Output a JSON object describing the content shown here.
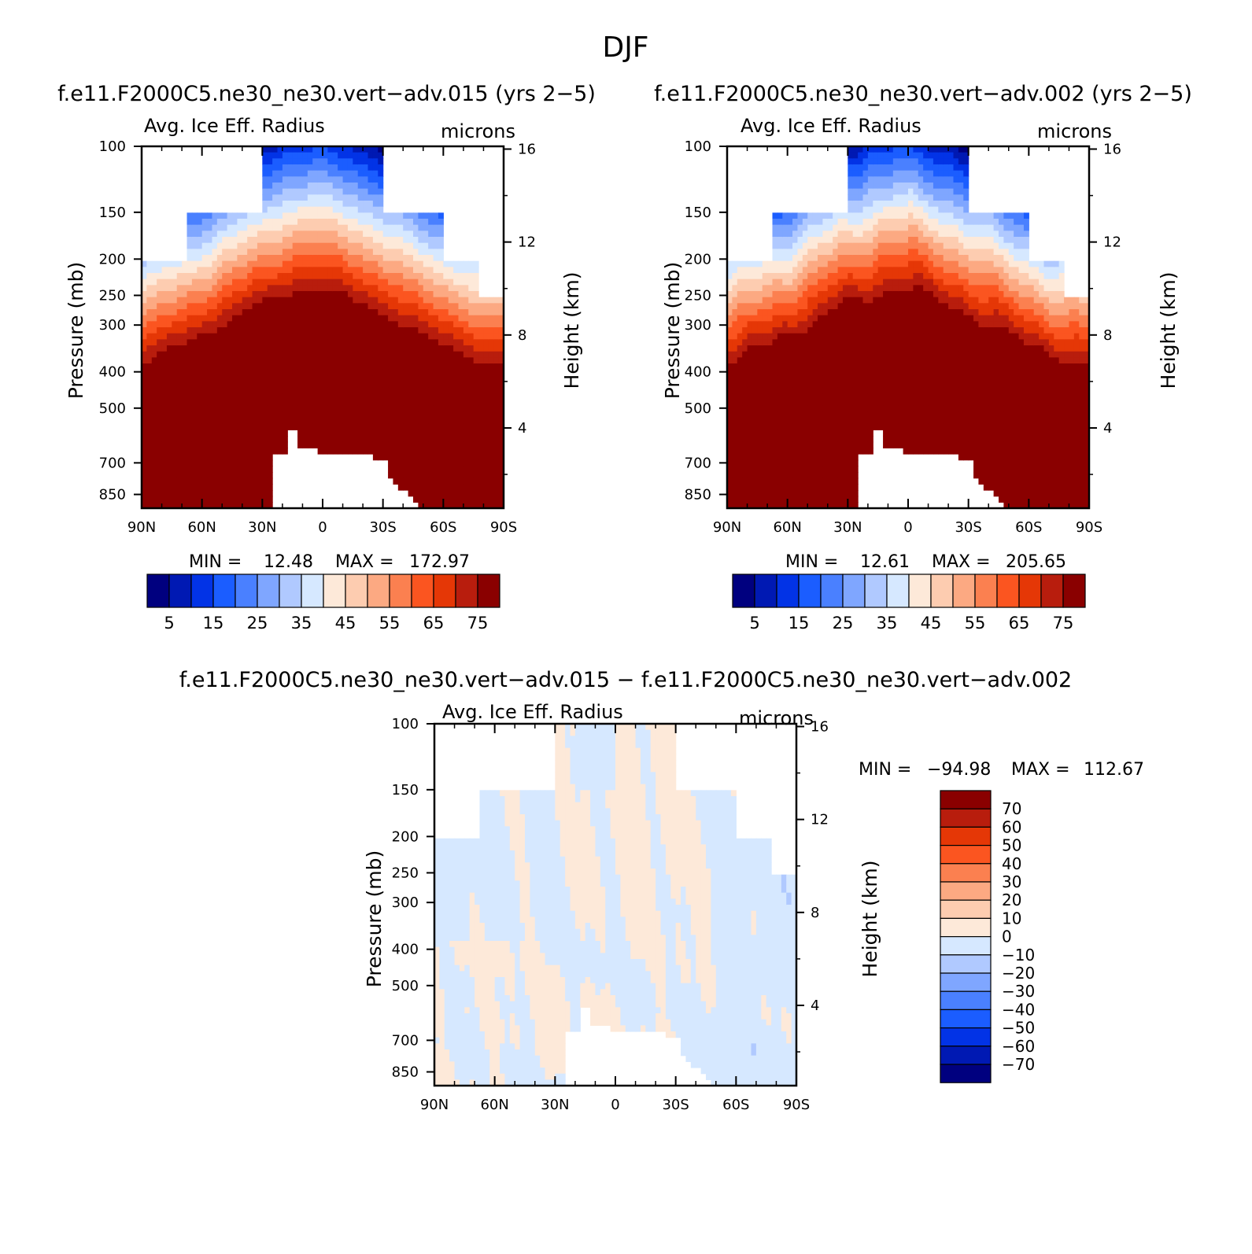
{
  "figure_title": "DJF",
  "colors": {
    "abs_levels": [
      "#00007f",
      "#0019b3",
      "#0233e6",
      "#1b5dff",
      "#4a80ff",
      "#7fa6ff",
      "#b0c9ff",
      "#d6e8ff",
      "#fde9d9",
      "#fdccb0",
      "#fca982",
      "#fb8050",
      "#fb5520",
      "#e53706",
      "#b81d0d",
      "#8a0000"
    ],
    "diff_levels": [
      "#8a0000",
      "#b81d0d",
      "#e53706",
      "#fb5520",
      "#fb8050",
      "#fca982",
      "#fdccb0",
      "#fde9d9",
      "#d6e8ff",
      "#b0c9ff",
      "#7fa6ff",
      "#4a80ff",
      "#1b5dff",
      "#0233e6",
      "#0019b3",
      "#00007f"
    ]
  },
  "chart_data": [
    {
      "type": "heatmap",
      "panel_title": "f.e11.F2000C5.ne30_ne30.vert−adv.015 (yrs 2−5)",
      "left_string": "Avg. Ice Eff. Radius",
      "right_string": "microns",
      "ylabel": "Pressure (mb)",
      "y2label": "Height (km)",
      "x_ticks": [
        "90N",
        "60N",
        "30N",
        "0",
        "30S",
        "60S",
        "90S"
      ],
      "y_ticks": [
        "100",
        "150",
        "200",
        "250",
        "300",
        "400",
        "500",
        "700",
        "850"
      ],
      "y2_ticks": [
        "16",
        "12",
        "8",
        "4"
      ],
      "min_label": "MIN =",
      "min_value": "12.48",
      "max_label": "MAX =",
      "max_value": "172.97",
      "colorbar_labels": [
        "5",
        "15",
        "25",
        "35",
        "45",
        "55",
        "65",
        "75"
      ]
    },
    {
      "type": "heatmap",
      "panel_title": "f.e11.F2000C5.ne30_ne30.vert−adv.002 (yrs 2−5)",
      "left_string": "Avg. Ice Eff. Radius",
      "right_string": "microns",
      "ylabel": "Pressure (mb)",
      "y2label": "Height (km)",
      "x_ticks": [
        "90N",
        "60N",
        "30N",
        "0",
        "30S",
        "60S",
        "90S"
      ],
      "y_ticks": [
        "100",
        "150",
        "200",
        "250",
        "300",
        "400",
        "500",
        "700",
        "850"
      ],
      "y2_ticks": [
        "16",
        "12",
        "8",
        "4"
      ],
      "min_label": "MIN =",
      "min_value": "12.61",
      "max_label": "MAX =",
      "max_value": "205.65",
      "colorbar_labels": [
        "5",
        "15",
        "25",
        "35",
        "45",
        "55",
        "65",
        "75"
      ]
    },
    {
      "type": "heatmap",
      "panel_title": "f.e11.F2000C5.ne30_ne30.vert−adv.015 − f.e11.F2000C5.ne30_ne30.vert−adv.002",
      "left_string": "Avg. Ice Eff. Radius",
      "right_string": "microns",
      "ylabel": "Pressure (mb)",
      "y2label": "Height (km)",
      "x_ticks": [
        "90N",
        "60N",
        "30N",
        "0",
        "30S",
        "60S",
        "90S"
      ],
      "y_ticks": [
        "100",
        "150",
        "200",
        "250",
        "300",
        "400",
        "500",
        "700",
        "850"
      ],
      "y2_ticks": [
        "16",
        "12",
        "8",
        "4"
      ],
      "min_label": "MIN =",
      "min_value": "−94.98",
      "max_label": "MAX =",
      "max_value": "112.67",
      "colorbar_labels": [
        "70",
        "60",
        "50",
        "40",
        "30",
        "20",
        "10",
        "0",
        "−10",
        "−20",
        "−30",
        "−40",
        "−50",
        "−60",
        "−70"
      ]
    }
  ]
}
